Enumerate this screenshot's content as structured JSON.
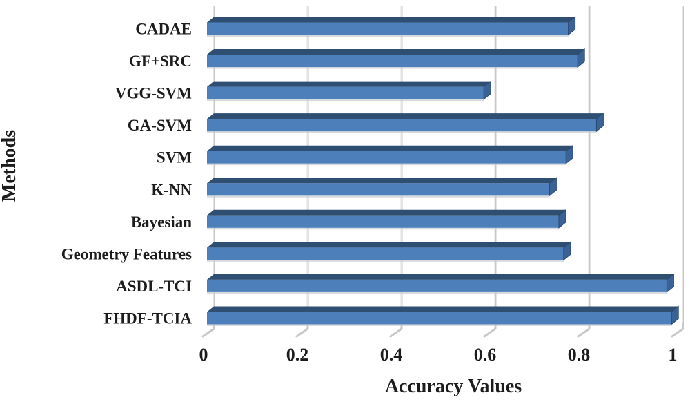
{
  "chart_data": {
    "type": "bar",
    "orientation": "horizontal",
    "style": "3d",
    "title": "",
    "xlabel": "Accuracy Values",
    "ylabel": "Methods",
    "categories": [
      "CADAE",
      "GF+SRC",
      "VGG-SVM",
      "GA-SVM",
      "SVM",
      "K-NN",
      "Bayesian",
      "Geometry Features",
      "ASDL-TCI",
      "FHDF-TCIA"
    ],
    "values": [
      0.77,
      0.79,
      0.59,
      0.83,
      0.765,
      0.73,
      0.75,
      0.76,
      0.98,
      0.99
    ],
    "xlim": [
      0,
      1
    ],
    "xticks": [
      0,
      0.2,
      0.4,
      0.6,
      0.8,
      1
    ],
    "xtick_labels": [
      "0",
      "0.2",
      "0.4",
      "0.6",
      "0.8",
      "1"
    ],
    "grid": true,
    "legend": false,
    "colors": {
      "bar_front": "#4d7fbb",
      "bar_top": "#2e4f72",
      "bar_side": "#3b6296",
      "bar_side_edge": "#2b4a6d",
      "bar_shadow": "#c9cdd3",
      "gridline": "#c8c8c8",
      "gridline_highlight": "#f0f0f0",
      "text": "#1c1c1c",
      "background": "#ffffff"
    }
  }
}
